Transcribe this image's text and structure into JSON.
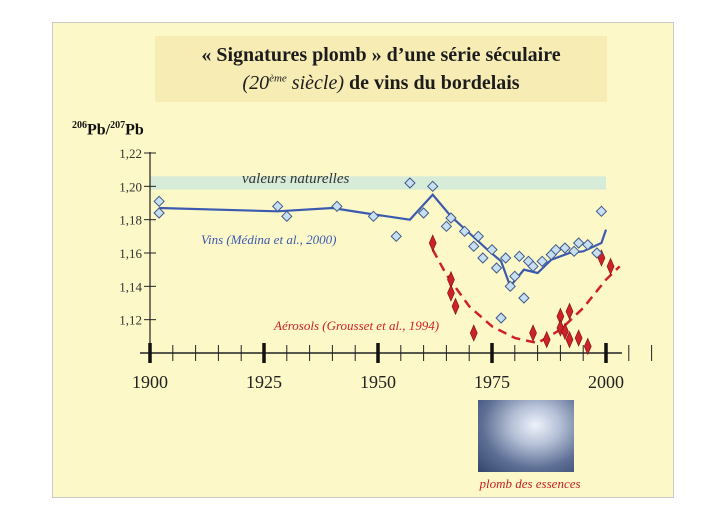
{
  "title": {
    "line1": "« Signatures plomb » d’une série séculaire",
    "line2_open": "(20",
    "line2_sup": "ème",
    "line2_italic_rest": " siècle)",
    "line2_rest": " de vins du bordelais"
  },
  "ylabel": {
    "mass1": "206",
    "el1": "Pb/",
    "mass2": "207",
    "el2": "Pb"
  },
  "photo_caption": "plomb des essences",
  "colors": {
    "wine": "#3b5ab0",
    "aerosol": "#cc2228",
    "band": "#d7ecd8",
    "slide": "#fdf8c8"
  },
  "chart_data": {
    "type": "line",
    "xlim": [
      1900,
      2000
    ],
    "ylim": [
      1.1,
      1.22
    ],
    "x_ticks": [
      1900,
      1925,
      1950,
      1975,
      2000
    ],
    "y_ticks": [
      "1,12",
      "1,14",
      "1,16",
      "1,18",
      "1,20",
      "1,22"
    ],
    "y_tick_values": [
      1.12,
      1.14,
      1.16,
      1.18,
      1.2,
      1.22
    ],
    "natural_band": {
      "label": "valeurs naturelles",
      "y_range": [
        1.198,
        1.206
      ]
    },
    "series": [
      {
        "name": "Vins (Médina et al., 2000)",
        "style": "line+markers",
        "line": [
          [
            1902,
            1.187
          ],
          [
            1928,
            1.185
          ],
          [
            1940,
            1.187
          ],
          [
            1947,
            1.184
          ],
          [
            1957,
            1.18
          ],
          [
            1962,
            1.195
          ],
          [
            1966,
            1.182
          ],
          [
            1970,
            1.172
          ],
          [
            1974,
            1.162
          ],
          [
            1977,
            1.155
          ],
          [
            1979,
            1.14
          ],
          [
            1982,
            1.15
          ],
          [
            1985,
            1.148
          ],
          [
            1988,
            1.156
          ],
          [
            1992,
            1.16
          ],
          [
            1995,
            1.161
          ],
          [
            1999,
            1.166
          ],
          [
            2000,
            1.174
          ]
        ],
        "points": [
          [
            1902,
            1.191
          ],
          [
            1902,
            1.184
          ],
          [
            1928,
            1.188
          ],
          [
            1930,
            1.182
          ],
          [
            1941,
            1.188
          ],
          [
            1949,
            1.182
          ],
          [
            1954,
            1.17
          ],
          [
            1957,
            1.202
          ],
          [
            1960,
            1.184
          ],
          [
            1962,
            1.2
          ],
          [
            1965,
            1.176
          ],
          [
            1966,
            1.181
          ],
          [
            1969,
            1.173
          ],
          [
            1971,
            1.164
          ],
          [
            1972,
            1.17
          ],
          [
            1973,
            1.157
          ],
          [
            1975,
            1.162
          ],
          [
            1976,
            1.151
          ],
          [
            1977,
            1.121
          ],
          [
            1978,
            1.157
          ],
          [
            1979,
            1.14
          ],
          [
            1980,
            1.146
          ],
          [
            1981,
            1.158
          ],
          [
            1982,
            1.133
          ],
          [
            1983,
            1.155
          ],
          [
            1984,
            1.152
          ],
          [
            1986,
            1.155
          ],
          [
            1988,
            1.159
          ],
          [
            1989,
            1.162
          ],
          [
            1991,
            1.163
          ],
          [
            1993,
            1.161
          ],
          [
            1994,
            1.166
          ],
          [
            1996,
            1.165
          ],
          [
            1998,
            1.16
          ],
          [
            1999,
            1.185
          ]
        ]
      },
      {
        "name": "Aérosols (Grousset et al., 1994)",
        "style": "dashed-fit+markers",
        "line": [
          [
            1962,
            1.162
          ],
          [
            1965,
            1.147
          ],
          [
            1970,
            1.128
          ],
          [
            1975,
            1.116
          ],
          [
            1980,
            1.109
          ],
          [
            1985,
            1.106
          ],
          [
            1990,
            1.114
          ],
          [
            1995,
            1.127
          ],
          [
            2000,
            1.144
          ],
          [
            2003,
            1.152
          ]
        ],
        "points": [
          [
            1962,
            1.166
          ],
          [
            1966,
            1.144
          ],
          [
            1966,
            1.136
          ],
          [
            1967,
            1.128
          ],
          [
            1971,
            1.112
          ],
          [
            1984,
            1.112
          ],
          [
            1987,
            1.108
          ],
          [
            1990,
            1.122
          ],
          [
            1990,
            1.115
          ],
          [
            1991,
            1.113
          ],
          [
            1992,
            1.125
          ],
          [
            1992,
            1.108
          ],
          [
            1994,
            1.109
          ],
          [
            1996,
            1.104
          ],
          [
            1999,
            1.157
          ],
          [
            2001,
            1.152
          ]
        ]
      }
    ]
  }
}
